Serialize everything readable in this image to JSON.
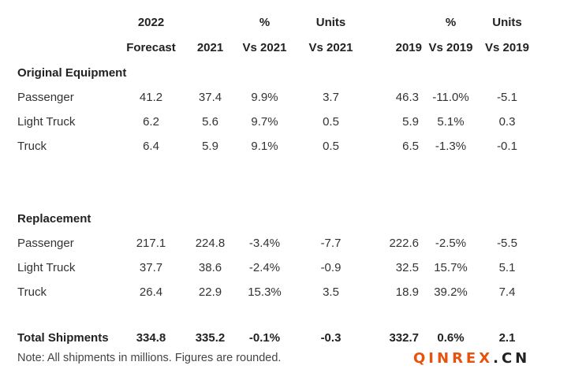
{
  "header": {
    "row1": [
      "",
      "2022",
      "",
      "%",
      "Units",
      "",
      "%",
      "Units"
    ],
    "row2": [
      "",
      "Forecast",
      "2021",
      "Vs 2021",
      "Vs 2021",
      "2019",
      "Vs 2019",
      "Vs 2019"
    ]
  },
  "sections": [
    {
      "title": "Original Equipment",
      "rows": [
        {
          "label": "Passenger",
          "cells": [
            "41.2",
            "37.4",
            "9.9%",
            "3.7",
            "46.3",
            "-11.0%",
            "-5.1"
          ]
        },
        {
          "label": "Light Truck",
          "cells": [
            "6.2",
            "5.6",
            "9.7%",
            "0.5",
            "5.9",
            "5.1%",
            "0.3"
          ]
        },
        {
          "label": "Truck",
          "cells": [
            "6.4",
            "5.9",
            "9.1%",
            "0.5",
            "6.5",
            "-1.3%",
            "-0.1"
          ]
        }
      ]
    },
    {
      "title": "Replacement",
      "rows": [
        {
          "label": "Passenger",
          "cells": [
            "217.1",
            "224.8",
            "-3.4%",
            "-7.7",
            "222.6",
            "-2.5%",
            "-5.5"
          ]
        },
        {
          "label": "Light Truck",
          "cells": [
            "37.7",
            "38.6",
            "-2.4%",
            "-0.9",
            "32.5",
            "15.7%",
            "5.1"
          ]
        },
        {
          "label": "Truck",
          "cells": [
            "26.4",
            "22.9",
            "15.3%",
            "3.5",
            "18.9",
            "39.2%",
            "7.4"
          ]
        }
      ]
    }
  ],
  "total": {
    "label": "Total Shipments",
    "cells": [
      "334.8",
      "335.2",
      "-0.1%",
      "-0.3",
      "332.7",
      "0.6%",
      "2.1"
    ]
  },
  "note": "Note: All shipments in millions. Figures are rounded.",
  "watermark": {
    "main": "QINREX",
    "suffix": ".CN",
    "color": "#e8520c"
  }
}
